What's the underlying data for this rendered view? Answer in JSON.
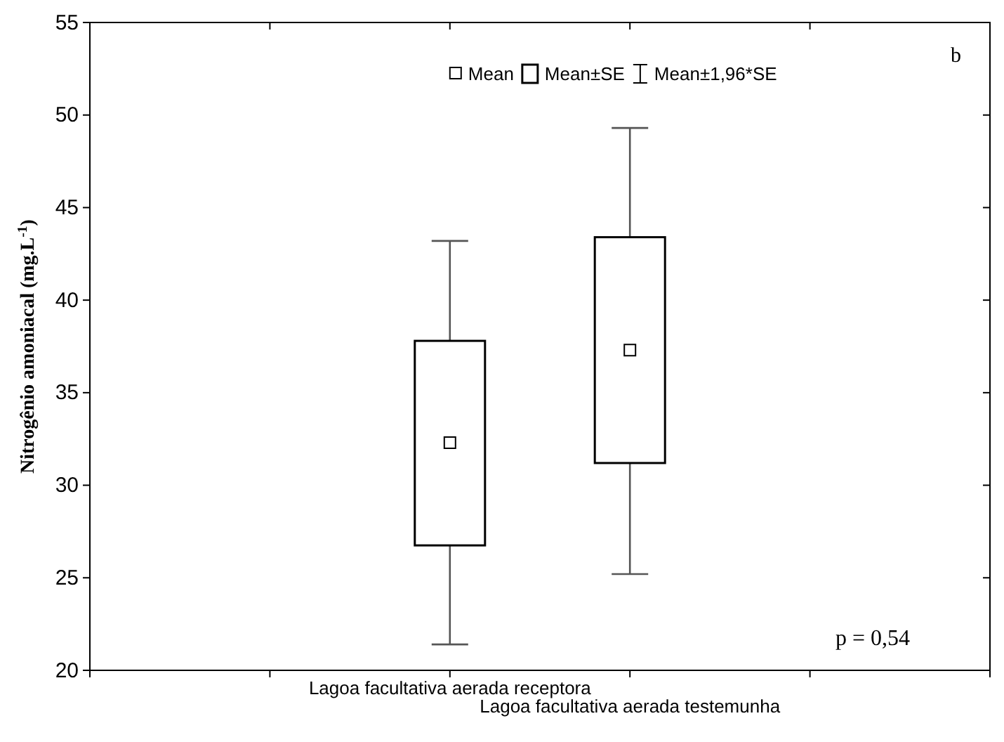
{
  "chart_data": {
    "type": "box",
    "ylabel": "Nitrogênio amoniacal (mg.L$^{-1}$)",
    "categories": [
      null,
      "Lagoa facultativa aerada receptora",
      "Lagoa facultativa aerada testemunha",
      null
    ],
    "boxes": [
      null,
      {
        "low": 21.4,
        "q1": 26.75,
        "median": null,
        "q3": 37.8,
        "high": 43.2,
        "mean": 32.3
      },
      {
        "low": 25.2,
        "q1": 31.2,
        "median": null,
        "q3": 43.4,
        "high": 49.3,
        "mean": 37.3
      },
      null
    ],
    "ylim": [
      20,
      55
    ],
    "yticks": [
      20,
      25,
      30,
      35,
      40,
      45,
      50,
      55
    ],
    "grid": false,
    "annotations": [
      "Mean",
      "Mean±SE",
      "Mean±1,96*SE",
      "b",
      "p = 0,54"
    ]
  }
}
